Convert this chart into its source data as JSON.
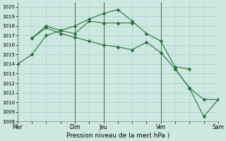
{
  "xlabel": "Pression niveau de la mer( hPa )",
  "background_color": "#cce8e0",
  "grid_color": "#aacccc",
  "line_color": "#2a6e3a",
  "ylim": [
    1008,
    1020.5
  ],
  "yticks": [
    1008,
    1009,
    1010,
    1011,
    1012,
    1013,
    1014,
    1015,
    1016,
    1017,
    1018,
    1019,
    1020
  ],
  "x_tick_labels": [
    "Mer",
    "",
    "Dim",
    "Jeu",
    "",
    "Ven",
    "",
    "Sam"
  ],
  "x_tick_positions": [
    0,
    2,
    4,
    6,
    8,
    10,
    12,
    14
  ],
  "vlines_x": [
    0,
    4,
    6,
    10,
    14
  ],
  "series": [
    {
      "x": [
        0,
        1,
        2,
        3,
        4,
        5,
        6,
        7,
        8,
        9,
        10,
        11,
        12
      ],
      "y": [
        1014.0,
        1015.0,
        1017.0,
        1017.5,
        1018.0,
        1018.7,
        1019.3,
        1019.7,
        1018.5,
        1017.2,
        1016.4,
        1013.7,
        1013.5
      ]
    },
    {
      "x": [
        1,
        2,
        3,
        4,
        5,
        6,
        7,
        8,
        9,
        10,
        11,
        12,
        13,
        14
      ],
      "y": [
        1016.7,
        1017.8,
        1017.2,
        1016.8,
        1016.4,
        1016.0,
        1015.8,
        1015.5,
        1016.3,
        1015.2,
        1013.5,
        1011.5,
        1010.3,
        1010.3
      ]
    },
    {
      "x": [
        1,
        2,
        3,
        4,
        5,
        6,
        7,
        8
      ],
      "y": [
        1016.7,
        1018.0,
        1017.5,
        1017.2,
        1018.5,
        1018.3,
        1018.3,
        1018.3
      ]
    },
    {
      "x": [
        11,
        12,
        13,
        14
      ],
      "y": [
        1013.5,
        1011.5,
        1008.5,
        1010.3
      ]
    }
  ]
}
